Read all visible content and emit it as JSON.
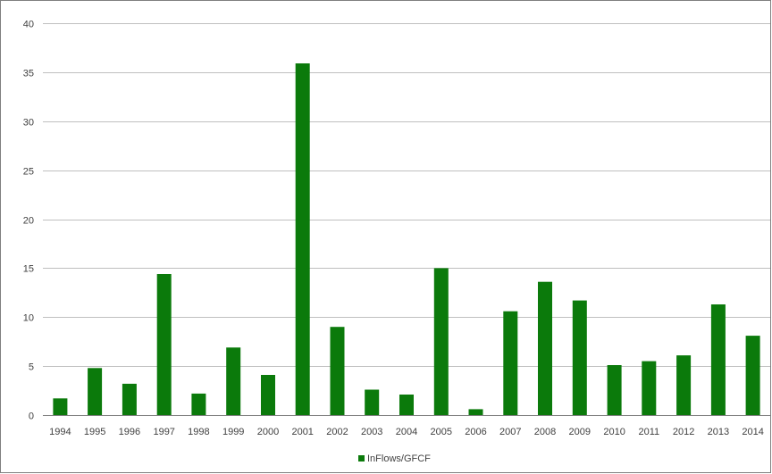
{
  "chart_data": {
    "type": "bar",
    "categories": [
      "1994",
      "1995",
      "1996",
      "1997",
      "1998",
      "1999",
      "2000",
      "2001",
      "2002",
      "2003",
      "2004",
      "2005",
      "2006",
      "2007",
      "2008",
      "2009",
      "2010",
      "2011",
      "2012",
      "2013",
      "2014"
    ],
    "series": [
      {
        "name": "InFlows/GFCF",
        "color": "#0b7a0b",
        "values": [
          1.7,
          4.8,
          3.2,
          14.4,
          2.2,
          6.9,
          4.1,
          35.9,
          9.0,
          2.6,
          2.1,
          15.0,
          0.6,
          10.6,
          13.6,
          11.7,
          5.1,
          5.5,
          6.1,
          11.3,
          8.1
        ]
      }
    ],
    "title": "",
    "xlabel": "",
    "ylabel": "",
    "ylim": [
      0,
      40
    ],
    "yticks": [
      "0",
      "5",
      "10",
      "15",
      "20",
      "25",
      "30",
      "35",
      "40"
    ],
    "grid": true,
    "legend": {
      "position": "bottom",
      "entries": [
        "InFlows/GFCF"
      ]
    },
    "colors": {
      "gridline": "#bfbfbf",
      "border": "#7f7f7f",
      "axis": "#7f7f7f"
    }
  }
}
